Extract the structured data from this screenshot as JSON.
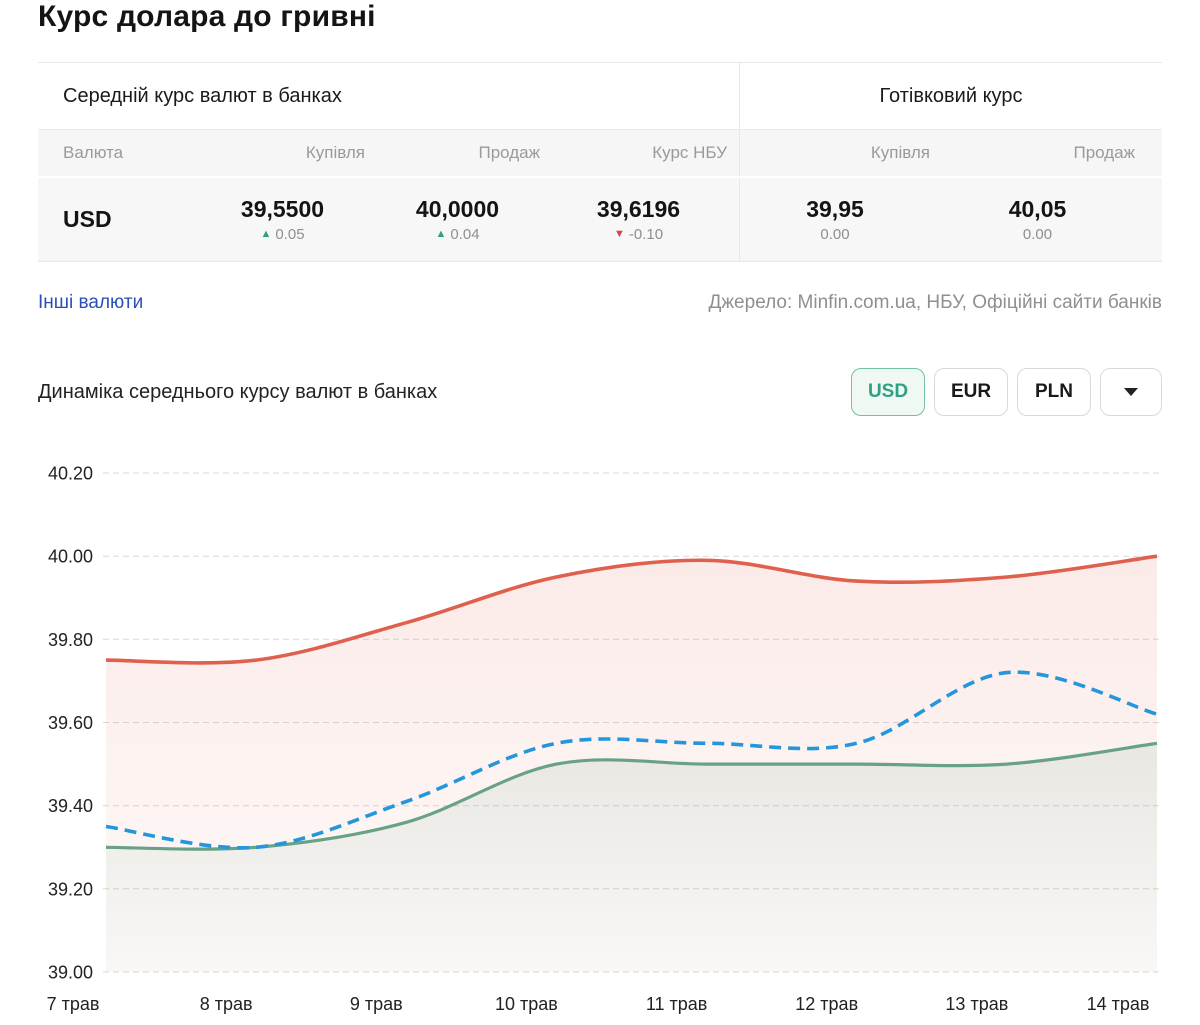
{
  "page": {
    "title": "Курс долара до гривні"
  },
  "rates_table": {
    "group_headers": [
      {
        "label": "Середній курс валют в банках"
      },
      {
        "label": "Готівковий курс"
      }
    ],
    "columns": [
      "Валюта",
      "Купівля",
      "Продаж",
      "Курс НБУ",
      "Купівля",
      "Продаж"
    ],
    "row": {
      "currency": "USD",
      "cells": [
        {
          "value": "39,5500",
          "change": "0.05",
          "direction": "up"
        },
        {
          "value": "40,0000",
          "change": "0.04",
          "direction": "up"
        },
        {
          "value": "39,6196",
          "change": "-0.10",
          "direction": "down"
        },
        {
          "value": "39,95",
          "change": "0.00",
          "direction": "none"
        },
        {
          "value": "40,05",
          "change": "0.00",
          "direction": "none"
        }
      ]
    }
  },
  "links": {
    "other_currencies": "Інші валюти",
    "source": "Джерело: Minfin.com.ua, НБУ, Офіційні сайти банків"
  },
  "chart_section": {
    "title": "Динаміка середнього курсу валют в банках",
    "currency_buttons": [
      {
        "label": "USD",
        "active": true
      },
      {
        "label": "EUR",
        "active": false
      },
      {
        "label": "PLN",
        "active": false
      }
    ]
  },
  "colors": {
    "accent_green": "#2fa183",
    "up_green": "#2ba576",
    "down_red": "#d9443f",
    "link_blue": "#2b50b4",
    "grid_gray": "#d8d8d8"
  },
  "chart_data": {
    "type": "area",
    "title": "Динаміка середнього курсу валют в банках",
    "x": [
      "7 трав",
      "8 трав",
      "9 трав",
      "10 трав",
      "11 трав",
      "12 трав",
      "13 трав",
      "14 трав"
    ],
    "series": [
      {
        "name": "Продаж",
        "color": "#e0604e",
        "style": "solid",
        "fill": true,
        "values": [
          39.75,
          39.75,
          39.84,
          39.95,
          39.99,
          39.94,
          39.95,
          40.0
        ]
      },
      {
        "name": "Купівля",
        "color": "#67a287",
        "style": "solid",
        "fill": true,
        "values": [
          39.3,
          39.3,
          39.36,
          39.5,
          39.5,
          39.5,
          39.5,
          39.55
        ]
      },
      {
        "name": "Курс НБУ",
        "color": "#2496dc",
        "style": "dashed",
        "fill": false,
        "values": [
          39.35,
          39.3,
          39.41,
          39.55,
          39.55,
          39.55,
          39.72,
          39.62
        ]
      }
    ],
    "ylim": [
      39.0,
      40.2
    ],
    "yticks": [
      39.0,
      39.2,
      39.4,
      39.6,
      39.8,
      40.0,
      40.2
    ],
    "xlabel": "",
    "ylabel": "",
    "grid": true,
    "legend": "none"
  }
}
